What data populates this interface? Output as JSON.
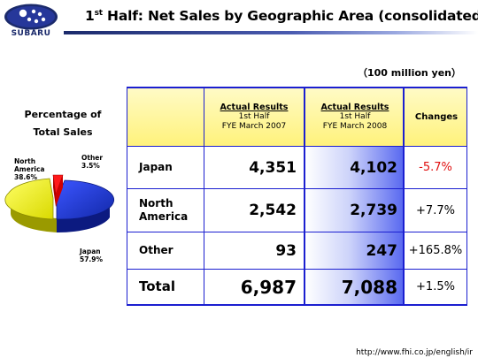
{
  "header": {
    "logo_text": "SUBARU",
    "title_prefix": "1",
    "title_sup": "st",
    "title_rest": " Half: Net Sales by Geographic Area (consolidated)"
  },
  "unit": "（100 million yen）",
  "pie": {
    "title_line1": "Percentage of",
    "title_line2": "Total Sales",
    "slices": [
      {
        "name_line1": "North",
        "name_line2": "America",
        "pct": "38.6%",
        "value": 38.6,
        "color": "#ffff00"
      },
      {
        "name_line1": "Other",
        "name_line2": "",
        "pct": "3.5%",
        "value": 3.5,
        "color": "#ff0000"
      },
      {
        "name_line1": "Japan",
        "name_line2": "",
        "pct": "57.9%",
        "value": 57.9,
        "color": "#1f3ad6"
      }
    ]
  },
  "table": {
    "headers": {
      "col1_line1": "Actual Results",
      "col1_line2": "1st Half",
      "col1_line3": "FYE March 2007",
      "col2_line1": "Actual Results",
      "col2_line2": "1st Half",
      "col2_line3": "FYE March 2008",
      "changes": "Changes"
    },
    "rows": [
      {
        "label_line1": "Japan",
        "label_line2": "",
        "fy2007": "4,351",
        "fy2008": "4,102",
        "change": "-5.7%",
        "negative": true
      },
      {
        "label_line1": "North",
        "label_line2": "America",
        "fy2007": "2,542",
        "fy2008": "2,739",
        "change": "+7.7%",
        "negative": false
      },
      {
        "label_line1": "Other",
        "label_line2": "",
        "fy2007": "93",
        "fy2008": "247",
        "change": "+165.8%",
        "negative": false
      }
    ],
    "total": {
      "label": "Total",
      "fy2007": "6,987",
      "fy2008": "7,088",
      "change": "+1.5%"
    }
  },
  "footer": {
    "url": "http://www.fhi.co.jp/english/ir"
  },
  "colors": {
    "accent_blue": "#1b1fd0",
    "header_yellow": "#fff27a",
    "negative_red": "#e01010",
    "brand_navy": "#1b2a6b"
  }
}
